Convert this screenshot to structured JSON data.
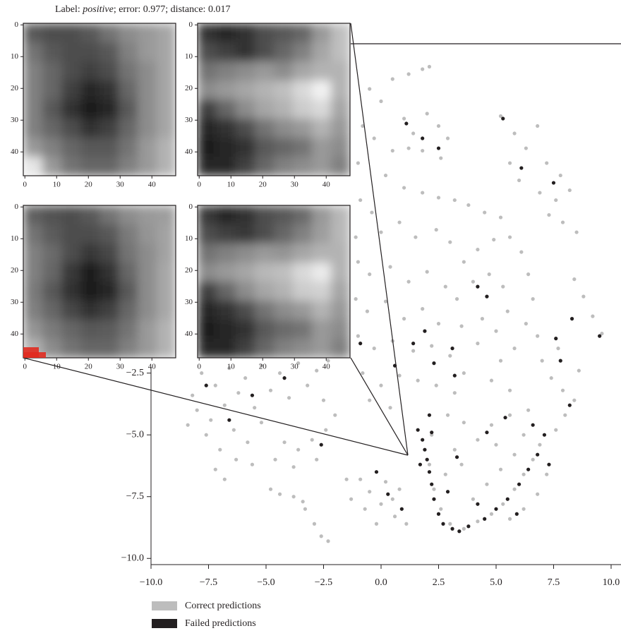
{
  "chart_data": [
    {
      "type": "scatter",
      "xlim": [
        -10,
        10.43
      ],
      "ylim": [
        -10.25,
        10
      ],
      "xticks": [
        {
          "value": -10,
          "label": "−10.0"
        },
        {
          "value": -7.5,
          "label": "−7.5"
        },
        {
          "value": -5,
          "label": "−5.0"
        },
        {
          "value": -2.5,
          "label": "−2.5"
        },
        {
          "value": 0,
          "label": "0.0"
        },
        {
          "value": 2.5,
          "label": "2.5"
        },
        {
          "value": 5,
          "label": "5.0"
        },
        {
          "value": 7.5,
          "label": "7.5"
        },
        {
          "value": 10,
          "label": "10.0"
        }
      ],
      "yticks": [
        {
          "value": -10,
          "label": "−10.0"
        },
        {
          "value": -7.5,
          "label": "−7.5"
        },
        {
          "value": -5,
          "label": "−5.0"
        },
        {
          "value": -2.5,
          "label": "−2.5"
        }
      ],
      "series": [
        {
          "name": "Correct predictions",
          "color": "#bdbdbd",
          "x": [
            0.5,
            1.2,
            1.8,
            2.1,
            -0.5,
            0.0,
            -0.8,
            -0.3,
            0.5,
            -1.0,
            0.2,
            1.0,
            1.8,
            2.5,
            3.2,
            3.8,
            4.5,
            5.2,
            -0.9,
            -0.4,
            -1.1,
            0.0,
            0.8,
            1.5,
            2.4,
            3.0,
            3.6,
            4.2,
            4.9,
            5.6,
            6.1,
            6.4,
            6.6,
            6.3,
            5.8,
            -1.0,
            -0.5,
            0.4,
            1.2,
            2.0,
            2.8,
            3.3,
            4.0,
            4.7,
            5.3,
            5.5,
            5.0,
            4.4,
            -1.1,
            -0.6,
            0.2,
            1.0,
            1.8,
            2.5,
            3.5,
            4.2,
            5.2,
            4.8,
            5.6,
            -1.0,
            -0.3,
            0.5,
            1.4,
            2.2,
            3.0,
            3.6,
            -0.8,
            0.0,
            0.8,
            1.6,
            2.4,
            3.2,
            -0.5,
            0.4,
            1.0,
            1.4,
            2.0,
            2.5,
            2.9,
            1.8,
            2.6,
            1.2,
            5.2,
            5.8,
            6.3,
            6.8,
            7.2,
            7.8,
            6.0,
            6.9,
            7.6,
            8.2,
            7.9,
            8.5,
            7.3,
            5.6,
            8.4,
            8.8,
            9.2,
            9.6,
            6.8,
            7.0,
            7.4,
            7.7,
            7.9,
            8.0,
            7.6,
            8.4,
            8.6,
            2.2,
            2.1,
            2.3,
            2.6,
            3.0,
            3.6,
            4.2,
            4.8,
            5.3,
            5.8,
            6.2,
            6.6,
            6.9,
            7.2,
            6.8,
            6.2,
            5.6,
            4.0,
            4.6,
            5.2,
            5.8,
            6.2,
            5.0,
            3.2,
            2.8,
            3.5,
            4.2,
            3.6,
            4.8,
            5.6,
            6.4,
            2.9,
            -0.9,
            -0.5,
            0.0,
            0.6,
            1.1,
            -0.7,
            0.2,
            0.8,
            -0.2,
            0.5,
            -8.2,
            -7.8,
            -7.2,
            -6.6,
            -5.9,
            -5.2,
            -4.4,
            -3.6,
            -2.8,
            -2.3,
            -8.0,
            -7.4,
            -6.8,
            -6.2,
            -5.5,
            -4.8,
            -4.0,
            -3.2,
            -2.5,
            -7.6,
            -7.0,
            -6.4,
            -5.8,
            -5.2,
            -7.2,
            -6.8,
            -6.3,
            -8.4,
            -5.6,
            -4.2,
            -3.6,
            -3.0,
            -2.4,
            -4.6,
            -3.8,
            -2.8,
            -4.8,
            -4.4,
            -3.8,
            -3.4,
            -3.3,
            -2.9,
            -2.6,
            -2.3,
            -2.0,
            -1.5,
            -1.3
          ],
          "y": [
            9.4,
            9.6,
            9.8,
            9.9,
            9.0,
            8.5,
            7.5,
            7.0,
            6.5,
            6.0,
            5.5,
            5.0,
            4.8,
            4.6,
            4.5,
            4.3,
            4.0,
            3.8,
            4.5,
            4.0,
            3.0,
            3.2,
            3.6,
            3.0,
            3.3,
            2.8,
            2.0,
            2.5,
            2.9,
            3.0,
            2.4,
            1.5,
            0.5,
            -0.5,
            -1.5,
            2.0,
            1.5,
            1.8,
            1.2,
            1.6,
            1.0,
            0.5,
            1.2,
            1.5,
            1.0,
            0.0,
            -0.8,
            -0.3,
            0.5,
            0.0,
            0.4,
            -0.3,
            0.1,
            -0.5,
            -0.6,
            -1.3,
            -2.0,
            -2.8,
            -3.2,
            -1.0,
            -1.5,
            -1.2,
            -1.6,
            -1.4,
            -1.8,
            -2.5,
            -2.5,
            -3.0,
            -2.6,
            -2.8,
            -3.0,
            -3.3,
            -3.6,
            -3.9,
            7.8,
            7.2,
            8.0,
            7.5,
            7.0,
            6.5,
            6.2,
            6.6,
            7.9,
            7.2,
            6.6,
            7.5,
            6.0,
            5.5,
            5.3,
            4.8,
            4.5,
            4.9,
            3.6,
            3.2,
            3.9,
            6.0,
            1.3,
            0.6,
            -0.2,
            -0.9,
            -1.0,
            -2.0,
            -2.7,
            -1.5,
            -3.2,
            -4.2,
            -4.8,
            -3.6,
            -2.4,
            -5.0,
            -6.2,
            -7.2,
            -8.0,
            -8.6,
            -8.8,
            -8.5,
            -8.2,
            -7.8,
            -7.2,
            -6.6,
            -6.0,
            -5.4,
            -6.6,
            -7.4,
            -8.0,
            -8.4,
            -7.6,
            -7.0,
            -6.4,
            -5.8,
            -5.0,
            -5.4,
            -5.6,
            -6.6,
            -6.2,
            -5.2,
            -4.5,
            -4.6,
            -4.2,
            -4.0,
            -4.2,
            -6.8,
            -7.3,
            -7.8,
            -8.3,
            -8.6,
            -8.0,
            -6.9,
            -7.2,
            -8.6,
            -7.6,
            -3.4,
            -2.5,
            -3.0,
            -2.3,
            -2.7,
            -2.2,
            -2.5,
            -2.1,
            -2.4,
            -2.0,
            -4.0,
            -4.4,
            -3.8,
            -3.3,
            -3.9,
            -3.2,
            -3.5,
            -3.0,
            -3.6,
            -5.0,
            -5.6,
            -4.8,
            -5.3,
            -4.5,
            -6.4,
            -6.8,
            -6.0,
            -4.6,
            -6.2,
            -5.3,
            -5.6,
            -5.2,
            -4.8,
            -6.0,
            -6.3,
            -6.0,
            -7.2,
            -7.4,
            -7.5,
            -7.7,
            -8.0,
            -8.6,
            -9.1,
            -9.3,
            -4.2,
            -6.8,
            -7.6
          ]
        },
        {
          "name": "Failed predictions",
          "color": "#231f20",
          "x": [
            1.8,
            1.9,
            2.0,
            2.1,
            2.2,
            1.7,
            2.3,
            2.5,
            2.7,
            3.1,
            3.4,
            3.8,
            4.5,
            5.0,
            5.5,
            6.0,
            6.4,
            6.8,
            7.1,
            6.6,
            5.4,
            4.6,
            3.3,
            2.9,
            4.2,
            5.9,
            7.3,
            2.2,
            2.1,
            8.2,
            7.8,
            8.3,
            7.6,
            9.5,
            1.4,
            2.3,
            3.2,
            3.1,
            1.9,
            -0.9,
            0.6,
            4.2,
            4.6,
            1.1,
            1.8,
            2.5,
            5.3,
            6.1,
            7.5,
            -7.6,
            -6.6,
            -5.6,
            -4.2,
            -2.6,
            0.3,
            0.9,
            1.6,
            -0.2
          ],
          "y": [
            -5.2,
            -5.6,
            -6.0,
            -6.5,
            -7.0,
            -6.2,
            -7.6,
            -8.2,
            -8.6,
            -8.8,
            -8.9,
            -8.7,
            -8.4,
            -8.0,
            -7.6,
            -7.0,
            -6.4,
            -5.8,
            -5.0,
            -4.6,
            -4.3,
            -4.9,
            -5.9,
            -7.3,
            -7.8,
            -8.2,
            -6.2,
            -4.9,
            -4.2,
            -3.8,
            -2.0,
            -0.3,
            -1.1,
            -1.0,
            -1.3,
            -2.1,
            -2.6,
            -1.5,
            -0.8,
            -1.3,
            -2.2,
            1.0,
            0.6,
            7.6,
            7.0,
            6.6,
            7.8,
            5.8,
            5.2,
            -3.0,
            -4.4,
            -3.4,
            -2.7,
            -5.4,
            -7.4,
            -8.0,
            -4.8,
            -6.5
          ]
        }
      ]
    },
    {
      "type": "image-grid",
      "title_parts": [
        "Label: ",
        "positive",
        "; error: 0.977; distance: 0.017"
      ],
      "xlim": [
        -0.5,
        47.5
      ],
      "ylim": [
        -0.5,
        47.5
      ],
      "ticks": [
        0,
        10,
        20,
        30,
        40
      ],
      "images": [
        {
          "values": [
            [
              0.35,
              0.3,
              0.3,
              0.35,
              0.45,
              0.55,
              0.6,
              0.65
            ],
            [
              0.45,
              0.35,
              0.3,
              0.3,
              0.35,
              0.5,
              0.6,
              0.65
            ],
            [
              0.5,
              0.4,
              0.3,
              0.25,
              0.3,
              0.45,
              0.55,
              0.65
            ],
            [
              0.5,
              0.4,
              0.25,
              0.15,
              0.2,
              0.4,
              0.55,
              0.65
            ],
            [
              0.5,
              0.35,
              0.2,
              0.1,
              0.15,
              0.35,
              0.55,
              0.65
            ],
            [
              0.5,
              0.4,
              0.3,
              0.2,
              0.25,
              0.4,
              0.55,
              0.65
            ],
            [
              0.6,
              0.5,
              0.4,
              0.35,
              0.35,
              0.45,
              0.6,
              0.7
            ],
            [
              0.9,
              0.6,
              0.45,
              0.4,
              0.4,
              0.5,
              0.6,
              0.7
            ]
          ]
        },
        {
          "values": [
            [
              0.2,
              0.15,
              0.2,
              0.3,
              0.35,
              0.4,
              0.6,
              0.75
            ],
            [
              0.3,
              0.25,
              0.2,
              0.3,
              0.4,
              0.5,
              0.65,
              0.75
            ],
            [
              0.45,
              0.5,
              0.55,
              0.6,
              0.55,
              0.65,
              0.7,
              0.7
            ],
            [
              0.55,
              0.6,
              0.65,
              0.7,
              0.75,
              0.85,
              0.95,
              0.7
            ],
            [
              0.25,
              0.4,
              0.55,
              0.65,
              0.7,
              0.8,
              0.85,
              0.65
            ],
            [
              0.15,
              0.2,
              0.3,
              0.45,
              0.55,
              0.6,
              0.7,
              0.6
            ],
            [
              0.1,
              0.15,
              0.2,
              0.35,
              0.4,
              0.45,
              0.6,
              0.55
            ],
            [
              0.15,
              0.15,
              0.25,
              0.4,
              0.5,
              0.55,
              0.6,
              0.5
            ]
          ]
        },
        {
          "values": [
            [
              0.38,
              0.32,
              0.3,
              0.35,
              0.45,
              0.55,
              0.6,
              0.62
            ],
            [
              0.45,
              0.36,
              0.3,
              0.3,
              0.35,
              0.48,
              0.58,
              0.64
            ],
            [
              0.5,
              0.42,
              0.3,
              0.22,
              0.28,
              0.45,
              0.55,
              0.64
            ],
            [
              0.5,
              0.4,
              0.22,
              0.12,
              0.2,
              0.4,
              0.55,
              0.66
            ],
            [
              0.48,
              0.35,
              0.2,
              0.1,
              0.15,
              0.35,
              0.55,
              0.66
            ],
            [
              0.5,
              0.4,
              0.28,
              0.2,
              0.25,
              0.4,
              0.55,
              0.66
            ],
            [
              0.58,
              0.48,
              0.4,
              0.35,
              0.36,
              0.45,
              0.6,
              0.7
            ],
            [
              0.7,
              0.55,
              0.45,
              0.4,
              0.4,
              0.5,
              0.6,
              0.7
            ]
          ]
        },
        {
          "values": [
            [
              0.22,
              0.15,
              0.2,
              0.3,
              0.35,
              0.42,
              0.6,
              0.72
            ],
            [
              0.3,
              0.25,
              0.22,
              0.3,
              0.4,
              0.5,
              0.62,
              0.72
            ],
            [
              0.45,
              0.5,
              0.55,
              0.6,
              0.58,
              0.65,
              0.7,
              0.7
            ],
            [
              0.55,
              0.6,
              0.65,
              0.72,
              0.75,
              0.85,
              0.92,
              0.7
            ],
            [
              0.25,
              0.4,
              0.55,
              0.65,
              0.7,
              0.8,
              0.82,
              0.65
            ],
            [
              0.15,
              0.2,
              0.3,
              0.45,
              0.55,
              0.6,
              0.7,
              0.6
            ],
            [
              0.1,
              0.15,
              0.2,
              0.35,
              0.42,
              0.45,
              0.6,
              0.55
            ],
            [
              0.15,
              0.15,
              0.25,
              0.4,
              0.5,
              0.55,
              0.6,
              0.5
            ]
          ]
        }
      ]
    }
  ]
}
